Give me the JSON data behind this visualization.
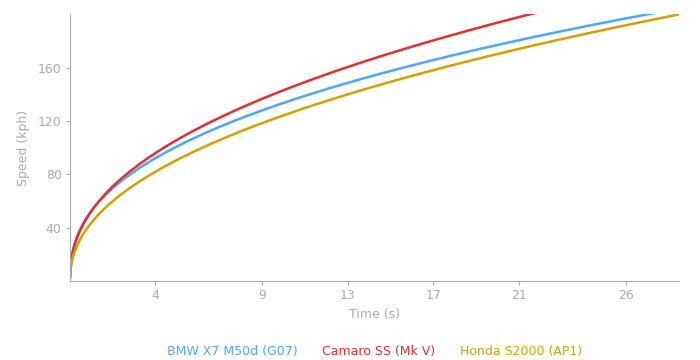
{
  "xlabel": "Time (s)",
  "ylabel": "Speed (kph)",
  "xlim": [
    0,
    28.5
  ],
  "ylim": [
    0,
    200
  ],
  "xticks": [
    4,
    9,
    13,
    17,
    21,
    26
  ],
  "yticks": [
    40,
    80,
    120,
    160
  ],
  "background_color": "#ffffff",
  "series": [
    {
      "label": "BMW X7 M50d (G07)",
      "color": "#4da6ff",
      "t_100": 4.9,
      "t_200": 27.0
    },
    {
      "label": "Camaro SS (Mk V)",
      "color": "#e03030",
      "t_100": 4.4,
      "t_200": 21.5
    },
    {
      "label": "Honda S2000 (AP1)",
      "color": "#d4a000",
      "t_100": 6.2,
      "t_200": 28.5
    }
  ],
  "legend_fontsize": 9,
  "axis_label_fontsize": 9,
  "tick_fontsize": 9,
  "line_width": 1.8,
  "spine_color": "#aaaaaa",
  "tick_color": "#aaaaaa",
  "label_color": "#aaaaaa"
}
